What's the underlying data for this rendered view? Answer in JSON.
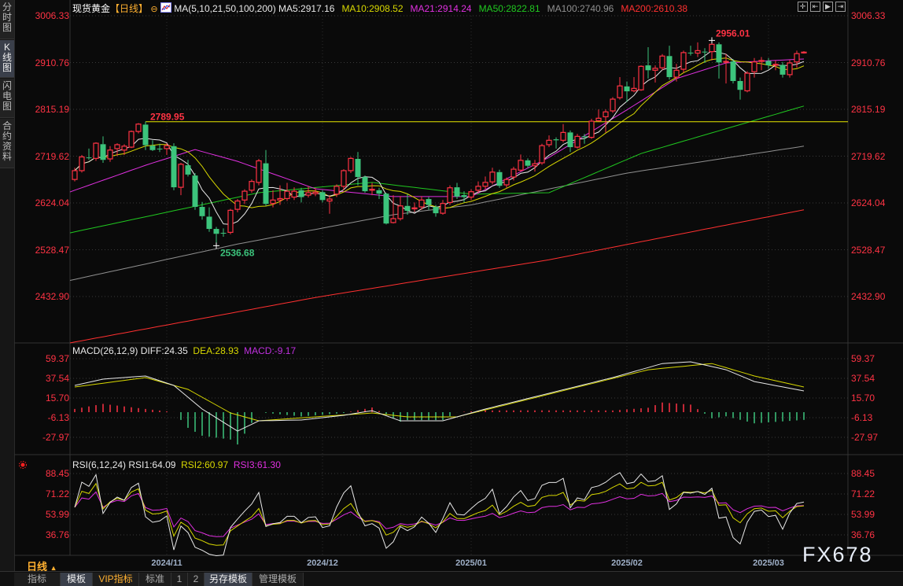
{
  "sidebar": {
    "tabs": [
      {
        "label": "分时图",
        "active": false
      },
      {
        "label": "K线图",
        "active": true
      },
      {
        "label": "闪电图",
        "active": false
      },
      {
        "label": "合约资料",
        "active": false
      }
    ]
  },
  "header": {
    "instrument": "现货黄金",
    "period": "【日线】",
    "ma_params": "MA(5,10,21,50,100,200)",
    "ma_values": [
      {
        "text": "MA5:2917.16",
        "color": "#e8e8e8"
      },
      {
        "text": "MA10:2908.52",
        "color": "#d8d800"
      },
      {
        "text": "MA21:2914.24",
        "color": "#e030e0"
      },
      {
        "text": "MA50:2822.81",
        "color": "#20c820"
      },
      {
        "text": "MA100:2740.96",
        "color": "#909090"
      },
      {
        "text": "MA200:2610.38",
        "color": "#ff3030"
      }
    ],
    "toolbar_icons": [
      "crosshair-icon",
      "range-select-icon",
      "play-forward-icon",
      "jump-end-icon"
    ]
  },
  "macd_header": {
    "params": "MACD(26,12,9)",
    "diff": "DIFF:24.35",
    "dea": "DEA:28.93",
    "macd": "MACD:-9.17"
  },
  "rsi_header": {
    "params": "RSI(6,12,24)",
    "rsi1": "RSI1:64.09",
    "rsi2": "RSI2:60.97",
    "rsi3": "RSI3:61.30"
  },
  "period_selector": {
    "label": "日线",
    "icon": "triangle-up-icon"
  },
  "bottom_toolbar": [
    {
      "label": "指标",
      "active": false
    },
    {
      "label": "模板",
      "active": true
    },
    {
      "label": "VIP指标",
      "active": false,
      "color": "#ffb030"
    },
    {
      "label": "标准",
      "active": false
    },
    {
      "label": "1",
      "active": false
    },
    {
      "label": "2",
      "active": false
    },
    {
      "label": "另存模板",
      "active": true
    },
    {
      "label": "管理模板",
      "active": false
    }
  ],
  "watermark": "FX678",
  "colors": {
    "up": "#ff3344",
    "down": "#3cc47c",
    "axis_text": "#ff3344",
    "date_text": "#9fb0c8",
    "level_line": "#e8e800"
  },
  "chart_data": [
    {
      "type": "candlestick",
      "title": "现货黄金【日线】",
      "y_ticks": [
        "3006.33",
        "2910.76",
        "2815.19",
        "2719.62",
        "2624.04",
        "2528.47",
        "2432.90"
      ],
      "x_ticks": [
        {
          "label": "2024/11",
          "index": 13
        },
        {
          "label": "2024/12",
          "index": 35
        },
        {
          "label": "2025/01",
          "index": 56
        },
        {
          "label": "2025/02",
          "index": 78
        },
        {
          "label": "2025/03",
          "index": 98
        }
      ],
      "grid": true,
      "ohlc": [
        [
          2672,
          2696,
          2668,
          2690
        ],
        [
          2690,
          2722,
          2686,
          2718
        ],
        [
          2717,
          2735,
          2712,
          2716
        ],
        [
          2715,
          2748,
          2710,
          2746
        ],
        [
          2744,
          2760,
          2706,
          2712
        ],
        [
          2714,
          2740,
          2708,
          2732
        ],
        [
          2735,
          2746,
          2720,
          2743
        ],
        [
          2732,
          2744,
          2722,
          2740
        ],
        [
          2738,
          2772,
          2736,
          2770
        ],
        [
          2770,
          2787,
          2766,
          2785
        ],
        [
          2784,
          2790,
          2732,
          2742
        ],
        [
          2741,
          2752,
          2730,
          2732
        ],
        [
          2735,
          2745,
          2728,
          2734
        ],
        [
          2735,
          2746,
          2722,
          2741
        ],
        [
          2740,
          2746,
          2650,
          2656
        ],
        [
          2656,
          2706,
          2640,
          2703
        ],
        [
          2701,
          2712,
          2678,
          2682
        ],
        [
          2680,
          2685,
          2610,
          2616
        ],
        [
          2616,
          2626,
          2590,
          2597
        ],
        [
          2596,
          2615,
          2565,
          2571
        ],
        [
          2571,
          2575,
          2537,
          2561
        ],
        [
          2563,
          2572,
          2555,
          2562
        ],
        [
          2564,
          2612,
          2560,
          2609
        ],
        [
          2611,
          2632,
          2605,
          2628
        ],
        [
          2630,
          2652,
          2622,
          2648
        ],
        [
          2650,
          2672,
          2645,
          2668
        ],
        [
          2666,
          2714,
          2660,
          2710
        ],
        [
          2705,
          2732,
          2618,
          2622
        ],
        [
          2623,
          2650,
          2615,
          2630
        ],
        [
          2630,
          2660,
          2620,
          2633
        ],
        [
          2633,
          2665,
          2628,
          2648
        ],
        [
          2636,
          2656,
          2630,
          2648
        ],
        [
          2650,
          2655,
          2625,
          2636
        ],
        [
          2640,
          2658,
          2635,
          2645
        ],
        [
          2643,
          2655,
          2638,
          2646
        ],
        [
          2646,
          2650,
          2625,
          2630
        ],
        [
          2628,
          2640,
          2602,
          2632
        ],
        [
          2642,
          2662,
          2636,
          2658
        ],
        [
          2658,
          2693,
          2650,
          2690
        ],
        [
          2690,
          2718,
          2685,
          2715
        ],
        [
          2714,
          2728,
          2660,
          2677
        ],
        [
          2677,
          2680,
          2645,
          2648
        ],
        [
          2650,
          2665,
          2640,
          2652
        ],
        [
          2650,
          2655,
          2632,
          2643
        ],
        [
          2643,
          2645,
          2580,
          2582
        ],
        [
          2584,
          2640,
          2582,
          2592
        ],
        [
          2592,
          2638,
          2588,
          2618
        ],
        [
          2618,
          2642,
          2600,
          2608
        ],
        [
          2612,
          2625,
          2606,
          2614
        ],
        [
          2616,
          2638,
          2610,
          2630
        ],
        [
          2632,
          2636,
          2610,
          2620
        ],
        [
          2616,
          2620,
          2596,
          2603
        ],
        [
          2603,
          2630,
          2600,
          2623
        ],
        [
          2625,
          2660,
          2620,
          2655
        ],
        [
          2656,
          2665,
          2632,
          2637
        ],
        [
          2640,
          2648,
          2625,
          2636
        ],
        [
          2636,
          2652,
          2630,
          2647
        ],
        [
          2650,
          2668,
          2645,
          2658
        ],
        [
          2658,
          2678,
          2652,
          2666
        ],
        [
          2667,
          2696,
          2662,
          2687
        ],
        [
          2687,
          2692,
          2655,
          2659
        ],
        [
          2661,
          2676,
          2655,
          2672
        ],
        [
          2677,
          2698,
          2670,
          2693
        ],
        [
          2691,
          2723,
          2688,
          2711
        ],
        [
          2711,
          2715,
          2696,
          2700
        ],
        [
          2700,
          2712,
          2688,
          2704
        ],
        [
          2706,
          2745,
          2702,
          2741
        ],
        [
          2743,
          2762,
          2738,
          2752
        ],
        [
          2754,
          2758,
          2735,
          2752
        ],
        [
          2752,
          2785,
          2748,
          2768
        ],
        [
          2768,
          2772,
          2728,
          2738
        ],
        [
          2738,
          2765,
          2735,
          2760
        ],
        [
          2760,
          2765,
          2745,
          2758
        ],
        [
          2758,
          2796,
          2755,
          2791
        ],
        [
          2792,
          2815,
          2790,
          2797
        ],
        [
          2800,
          2815,
          2768,
          2810
        ],
        [
          2812,
          2840,
          2808,
          2836
        ],
        [
          2839,
          2881,
          2835,
          2863
        ],
        [
          2862,
          2872,
          2830,
          2852
        ],
        [
          2853,
          2881,
          2850,
          2858
        ],
        [
          2855,
          2905,
          2853,
          2903
        ],
        [
          2905,
          2942,
          2878,
          2895
        ],
        [
          2895,
          2905,
          2870,
          2899
        ],
        [
          2900,
          2928,
          2895,
          2924
        ],
        [
          2924,
          2945,
          2876,
          2881
        ],
        [
          2881,
          2908,
          2872,
          2895
        ],
        [
          2897,
          2935,
          2890,
          2931
        ],
        [
          2931,
          2945,
          2925,
          2930
        ],
        [
          2930,
          2952,
          2922,
          2935
        ],
        [
          2933,
          2940,
          2910,
          2932
        ],
        [
          2933,
          2956.01,
          2915,
          2948
        ],
        [
          2948,
          2952,
          2878,
          2911
        ],
        [
          2913,
          2928,
          2868,
          2913
        ],
        [
          2913,
          2918,
          2868,
          2873
        ],
        [
          2873,
          2880,
          2835,
          2855
        ],
        [
          2853,
          2893,
          2850,
          2889
        ],
        [
          2892,
          2920,
          2880,
          2912
        ],
        [
          2913,
          2922,
          2895,
          2915
        ],
        [
          2914,
          2920,
          2898,
          2905
        ],
        [
          2906,
          2915,
          2895,
          2907
        ],
        [
          2906,
          2912,
          2880,
          2886
        ],
        [
          2886,
          2916,
          2880,
          2910
        ],
        [
          2912,
          2935,
          2900,
          2929
        ],
        [
          2931,
          2934,
          2929,
          2932
        ]
      ],
      "moving_averages": {
        "MA5": {
          "color": "#e8e8e8",
          "period": 5
        },
        "MA10": {
          "color": "#d8d800",
          "period": 10
        },
        "MA21": {
          "color": "#e030e0",
          "points": [
            [
              0,
              2650
            ],
            [
              10,
              2701
            ],
            [
              17,
              2733
            ],
            [
              23,
              2709
            ],
            [
              34,
              2653
            ],
            [
              45,
              2637
            ],
            [
              56,
              2637
            ],
            [
              67,
              2717
            ],
            [
              78,
              2814
            ],
            [
              85,
              2878
            ],
            [
              92,
              2910
            ],
            [
              103,
              2918
            ]
          ]
        },
        "MA50": {
          "color": "#20c820",
          "points": [
            [
              0,
              2565
            ],
            [
              26,
              2645
            ],
            [
              42,
              2666
            ],
            [
              56,
              2642
            ],
            [
              67,
              2645
            ],
            [
              80,
              2725
            ],
            [
              103,
              2822
            ]
          ]
        },
        "MA100": {
          "color": "#909090",
          "points": [
            [
              0,
              2468
            ],
            [
              23,
              2540
            ],
            [
              45,
              2600
            ],
            [
              56,
              2620
            ],
            [
              78,
              2685
            ],
            [
              103,
              2740
            ]
          ]
        },
        "MA200": {
          "color": "#ff3030",
          "points": [
            [
              0,
              2340
            ],
            [
              34,
              2431
            ],
            [
              67,
              2508
            ],
            [
              103,
              2610
            ]
          ]
        }
      },
      "level_line": {
        "value": 2789.95,
        "label": "2789.95",
        "from_index": 10
      },
      "annotations": [
        {
          "label": "2956.01",
          "index": 90,
          "value": 2956.01,
          "color": "#ff3344"
        },
        {
          "label": "2536.68",
          "index": 20,
          "value": 2536.68,
          "color": "#3cc47c"
        }
      ]
    },
    {
      "type": "line",
      "title": "MACD(26,12,9)",
      "y_ticks": [
        "59.37",
        "37.54",
        "15.70",
        "-6.13",
        "-27.97"
      ],
      "diff": {
        "color": "#e8e8e8",
        "points": [
          [
            0,
            29.7
          ],
          [
            4,
            36.7
          ],
          [
            10,
            40.2
          ],
          [
            14,
            29.7
          ],
          [
            18,
            3.5
          ],
          [
            23,
            -21
          ],
          [
            26,
            -9.6
          ],
          [
            32,
            -8.7
          ],
          [
            38,
            -3.5
          ],
          [
            42,
            1.7
          ],
          [
            46,
            -9.6
          ],
          [
            52,
            -9.6
          ],
          [
            58,
            3.5
          ],
          [
            67,
            21
          ],
          [
            76,
            38.4
          ],
          [
            83,
            54
          ],
          [
            87,
            55.9
          ],
          [
            92,
            47.1
          ],
          [
            96,
            34
          ],
          [
            103,
            23.6
          ]
        ]
      },
      "dea": {
        "color": "#d8d800",
        "points": [
          [
            0,
            27.9
          ],
          [
            10,
            38.4
          ],
          [
            16,
            25.3
          ],
          [
            22,
            -0.9
          ],
          [
            26,
            -9.6
          ],
          [
            34,
            -5.2
          ],
          [
            42,
            -0.9
          ],
          [
            47,
            -5.2
          ],
          [
            54,
            -5.2
          ],
          [
            63,
            12.2
          ],
          [
            72,
            29.7
          ],
          [
            81,
            47.1
          ],
          [
            90,
            54
          ],
          [
            96,
            40.2
          ],
          [
            103,
            27.9
          ]
        ]
      },
      "histogram": {
        "up_color": "#ff3344",
        "down_color": "#3cc47c",
        "formula": "2*(DIFF-DEA)"
      }
    },
    {
      "type": "line",
      "title": "RSI(6,12,24)",
      "y_ticks": [
        "88.45",
        "71.22",
        "53.99",
        "36.76"
      ],
      "series": [
        {
          "name": "RSI1",
          "period": 6,
          "color": "#e8e8e8"
        },
        {
          "name": "RSI2",
          "period": 12,
          "color": "#d8d800"
        },
        {
          "name": "RSI3",
          "period": 24,
          "color": "#e030e0"
        }
      ]
    }
  ]
}
